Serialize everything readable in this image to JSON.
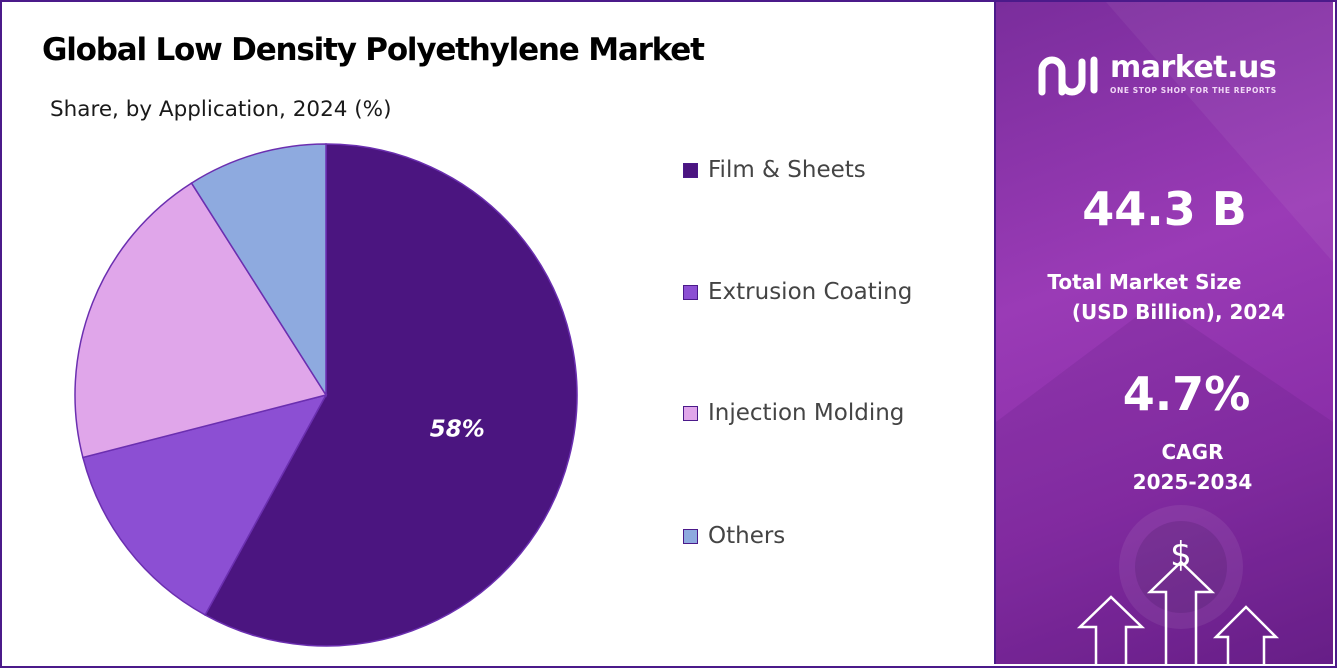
{
  "chart_data": {
    "type": "pie",
    "title": "Global Low Density Polyethylene Market",
    "subtitle": "Share, by Application, 2024 (%)",
    "categories": [
      "Film & Sheets",
      "Extrusion Coating",
      "Injection Molding",
      "Others"
    ],
    "values": [
      58,
      13,
      20,
      9
    ],
    "data_labels": [
      "58%",
      "",
      "",
      ""
    ],
    "colors": [
      "#4b1580",
      "#8c4fd3",
      "#e0a6ea",
      "#8eaadf"
    ],
    "legend_position": "right"
  },
  "sidebar": {
    "brand_name": "market.us",
    "brand_tagline": "ONE STOP SHOP FOR THE REPORTS",
    "market_size_value": "44.3 B",
    "market_size_label_1": "Total Market Size",
    "market_size_label_2": "(USD Billion), 2024",
    "cagr_value": "4.7%",
    "cagr_label_1": "CAGR",
    "cagr_label_2": "2025-2034",
    "dollar_symbol": "$"
  }
}
